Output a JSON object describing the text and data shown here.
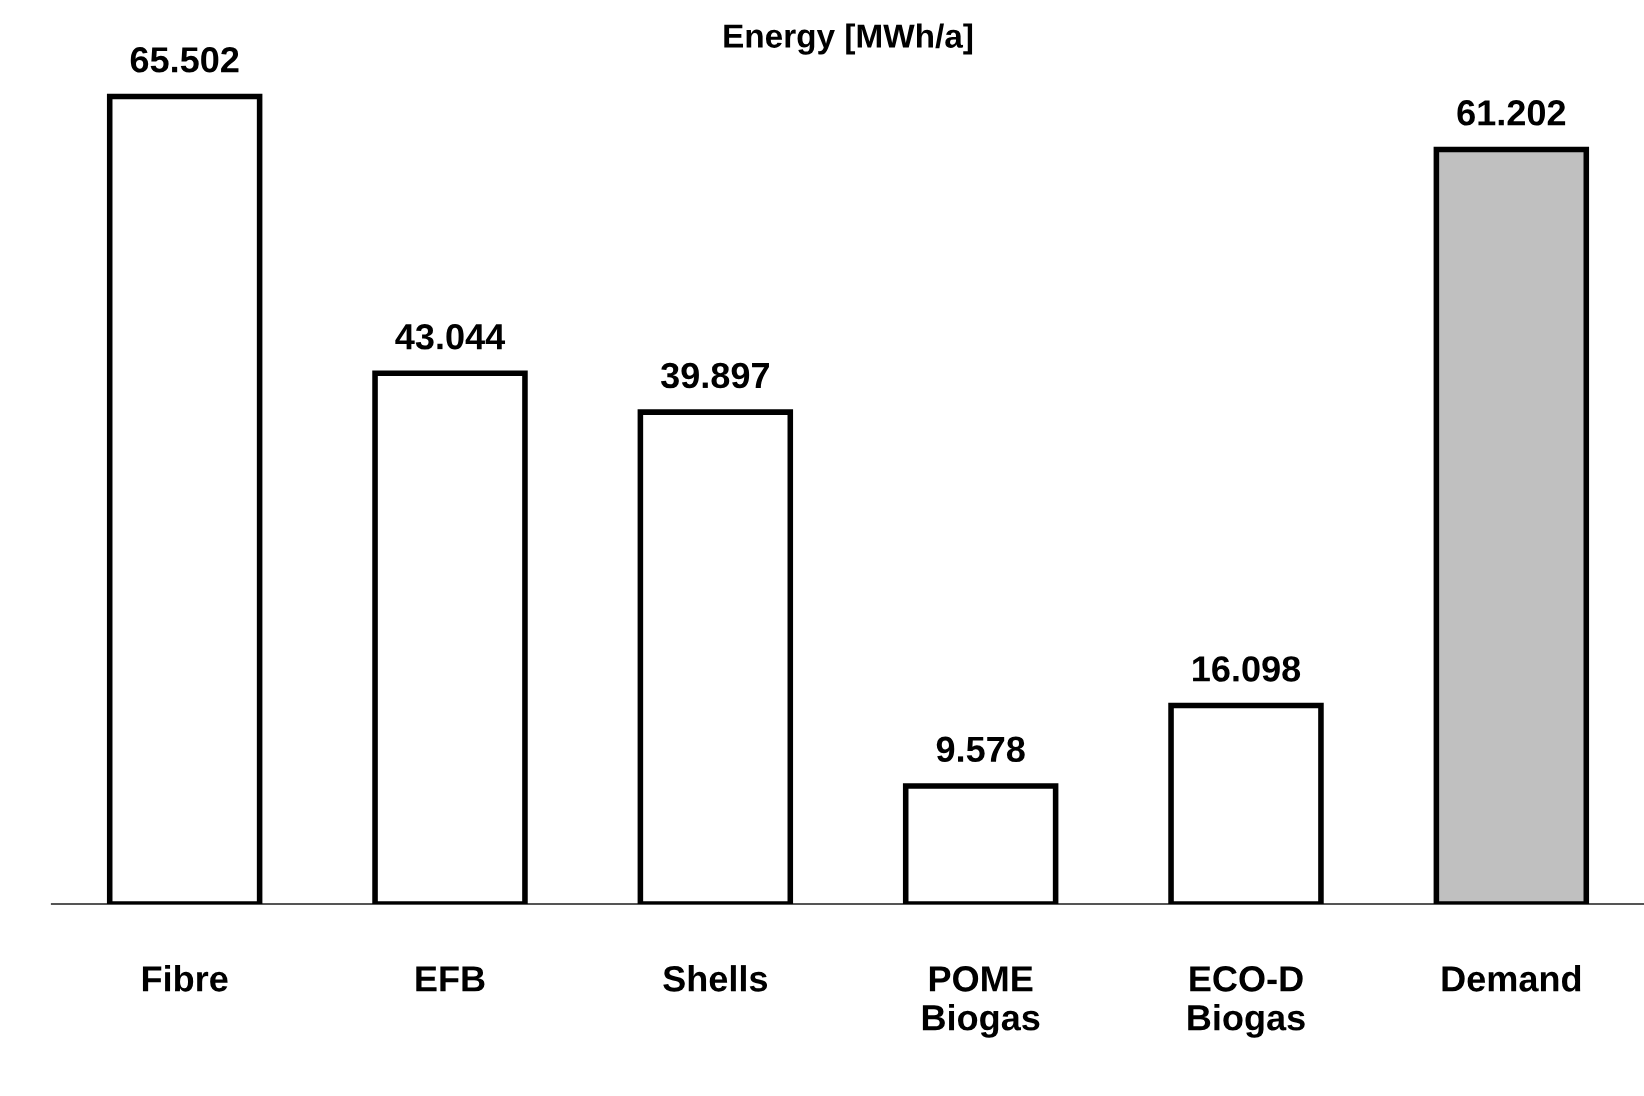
{
  "chart_data": {
    "type": "bar",
    "title": "Energy [MWh/a]",
    "categories": [
      "Fibre",
      "EFB",
      "Shells",
      "POME\nBiogas",
      "ECO-D\nBiogas",
      "Demand"
    ],
    "values": [
      65.502,
      43.044,
      39.897,
      9.578,
      16.098,
      61.202
    ],
    "colors": [
      "#ffffff",
      "#ffffff",
      "#ffffff",
      "#ffffff",
      "#ffffff",
      "#c0c0c0"
    ],
    "data_labels": true,
    "tick_labels": "x",
    "grid": false,
    "legend": false
  }
}
